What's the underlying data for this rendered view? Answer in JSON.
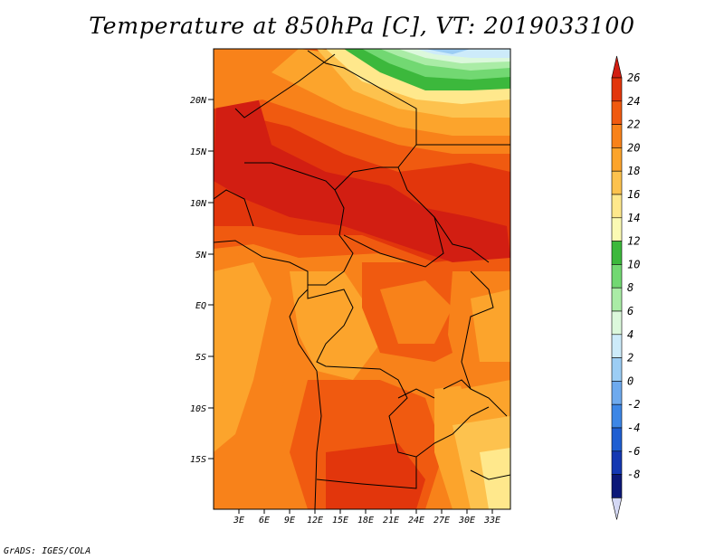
{
  "title": "Temperature at 850hPa [C], VT: 2019033100",
  "credit": "GrADS: IGES/COLA",
  "map": {
    "lat_ticks": [
      "20N",
      "15N",
      "10N",
      "5N",
      "EQ",
      "5S",
      "10S",
      "15S"
    ],
    "lon_ticks": [
      "3E",
      "6E",
      "9E",
      "12E",
      "15E",
      "18E",
      "21E",
      "24E",
      "27E",
      "30E",
      "33E"
    ],
    "field": "temperature at 850 hPa",
    "units": "C"
  },
  "colorbar": {
    "labels": [
      "26",
      "24",
      "22",
      "20",
      "18",
      "16",
      "14",
      "12",
      "10",
      "8",
      "6",
      "4",
      "2",
      "0",
      "-2",
      "-4",
      "-6",
      "-8"
    ],
    "colors": [
      "#d21e12",
      "#e2360c",
      "#f05a10",
      "#f8821a",
      "#fca42c",
      "#fdc24e",
      "#ffe88c",
      "#fbfab4",
      "#3cb83c",
      "#72d872",
      "#aaeca6",
      "#dcf8dc",
      "#cdebfa",
      "#9ccdf4",
      "#6eaaee",
      "#3c86e6",
      "#1e5ed2",
      "#1438b2",
      "#0c1878",
      "#d4d8f4"
    ]
  }
}
